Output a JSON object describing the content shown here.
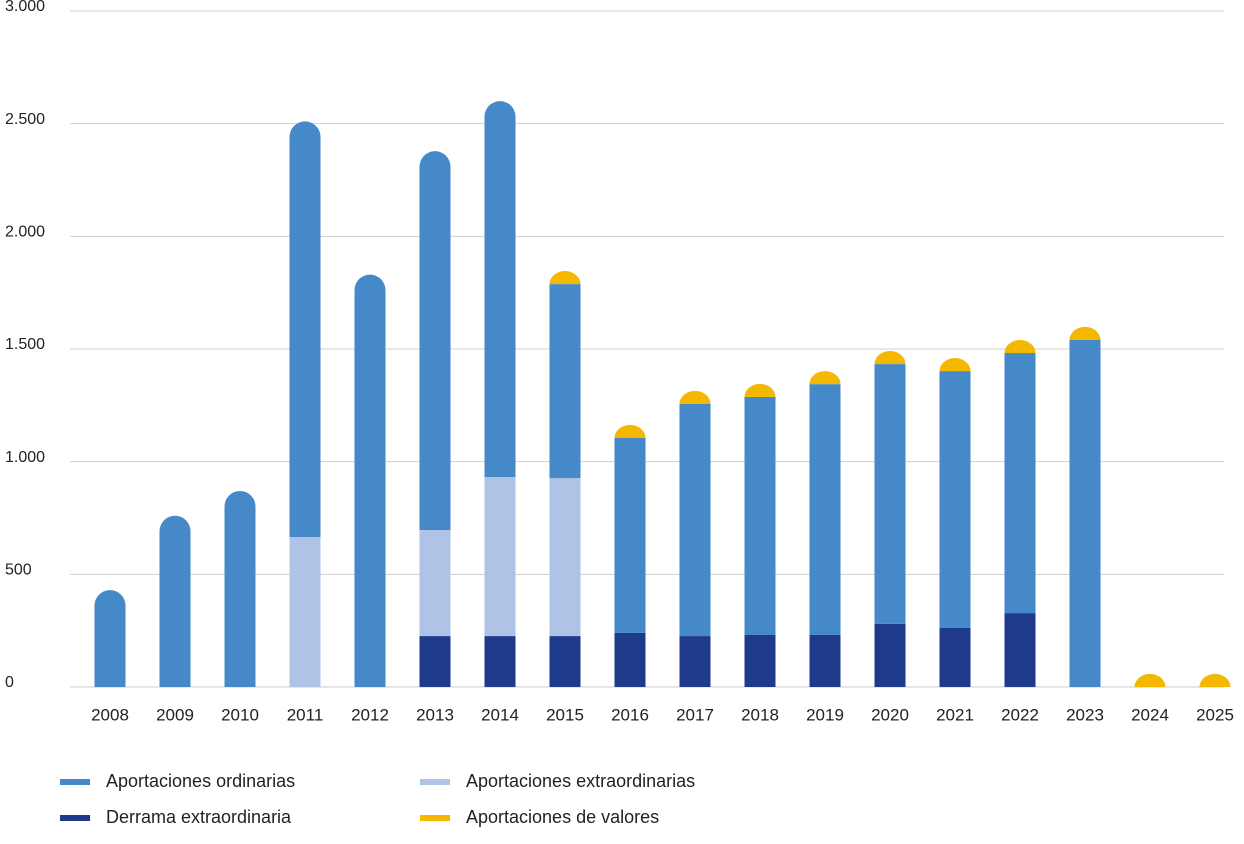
{
  "chart_data": {
    "type": "stacked_bar",
    "categories": [
      "2008",
      "2009",
      "2010",
      "2011",
      "2012",
      "2013",
      "2014",
      "2015",
      "2016",
      "2017",
      "2018",
      "2019",
      "2020",
      "2021",
      "2022",
      "2023",
      "2024",
      "2025"
    ],
    "series": [
      {
        "name": "Derrama extraordinaria",
        "color": "#1f3a8a",
        "values": [
          null,
          null,
          null,
          null,
          null,
          226,
          226,
          226,
          240,
          226,
          231,
          231,
          280,
          262,
          328,
          null,
          null,
          null
        ]
      },
      {
        "name": "Aportaciones extraordinarias",
        "color": "#aec3e5",
        "values": [
          null,
          null,
          null,
          665,
          null,
          471,
          706,
          701,
          null,
          null,
          null,
          null,
          null,
          null,
          null,
          null,
          null,
          null
        ]
      },
      {
        "name": "Aportaciones ordinarias",
        "color": "#4589c8",
        "values": [
          430,
          760,
          870,
          1845,
          1830,
          1681,
          1668,
          861,
          865,
          1030,
          1056,
          1113,
          1153,
          1140,
          1154,
          1540,
          null,
          null
        ]
      },
      {
        "name": "Aportaciones de valores",
        "color": "#f5b800",
        "values": [
          null,
          null,
          null,
          null,
          null,
          null,
          null,
          58,
          58,
          58,
          58,
          58,
          58,
          58,
          58,
          58,
          58,
          58
        ]
      }
    ],
    "ylim": [
      0,
      3000
    ],
    "yticks": [
      0,
      500,
      {
        "value": 1000,
        "label": "1.000"
      },
      {
        "value": 1500,
        "label": "1.500"
      },
      {
        "value": 2000,
        "label": "2.000"
      },
      {
        "value": 2500,
        "label": "2.500"
      },
      {
        "value": 3000,
        "label": "3.000"
      }
    ],
    "grid": true
  }
}
